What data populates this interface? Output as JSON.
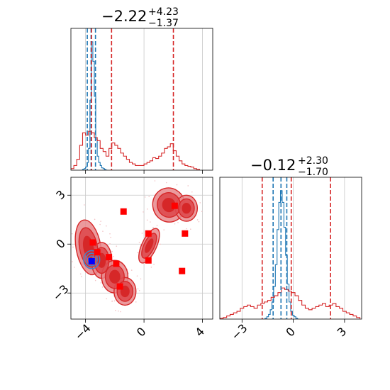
{
  "chart_data": [
    {
      "type": "histogram",
      "panel": "top-left",
      "title": {
        "main": "−2.22",
        "sup": "+4.23",
        "sub": "−1.37"
      },
      "xlim": [
        -5.0,
        4.7
      ],
      "grid": true,
      "series": [
        {
          "name": "",
          "color": "#1f77b4",
          "role": "narrow-posterior",
          "bins": [
            [
              -4.25,
              0
            ],
            [
              -4.15,
              1
            ],
            [
              -4.05,
              2
            ],
            [
              -3.95,
              4
            ],
            [
              -3.85,
              10
            ],
            [
              -3.75,
              28
            ],
            [
              -3.65,
              90
            ],
            [
              -3.55,
              165
            ],
            [
              -3.45,
              140
            ],
            [
              -3.35,
              95
            ],
            [
              -3.25,
              40
            ],
            [
              -3.15,
              18
            ],
            [
              -3.05,
              10
            ],
            [
              -2.95,
              6
            ],
            [
              -2.85,
              3
            ],
            [
              -2.75,
              2
            ],
            [
              -2.65,
              1
            ],
            [
              -2.55,
              0
            ]
          ],
          "quantiles": [
            -3.88,
            -3.62,
            -3.32
          ]
        },
        {
          "name": "",
          "color": "#d62728",
          "role": "broad-posterior",
          "bins": [
            [
              -4.9,
              2
            ],
            [
              -4.7,
              6
            ],
            [
              -4.5,
              14
            ],
            [
              -4.3,
              32
            ],
            [
              -4.1,
              48
            ],
            [
              -3.9,
              45
            ],
            [
              -3.7,
              50
            ],
            [
              -3.5,
              48
            ],
            [
              -3.3,
              42
            ],
            [
              -3.1,
              38
            ],
            [
              -2.9,
              28
            ],
            [
              -2.7,
              24
            ],
            [
              -2.5,
              18
            ],
            [
              -2.3,
              28
            ],
            [
              -2.1,
              35
            ],
            [
              -1.9,
              32
            ],
            [
              -1.7,
              28
            ],
            [
              -1.5,
              22
            ],
            [
              -1.3,
              18
            ],
            [
              -1.1,
              14
            ],
            [
              -0.9,
              10
            ],
            [
              -0.7,
              8
            ],
            [
              -0.5,
              6
            ],
            [
              -0.3,
              6
            ],
            [
              -0.1,
              6
            ],
            [
              0.1,
              8
            ],
            [
              0.3,
              10
            ],
            [
              0.5,
              12
            ],
            [
              0.7,
              16
            ],
            [
              0.9,
              15
            ],
            [
              1.1,
              18
            ],
            [
              1.3,
              22
            ],
            [
              1.5,
              28
            ],
            [
              1.7,
              30
            ],
            [
              1.9,
              34
            ],
            [
              2.1,
              25
            ],
            [
              2.3,
              18
            ],
            [
              2.5,
              12
            ],
            [
              2.7,
              8
            ],
            [
              2.9,
              6
            ],
            [
              3.1,
              5
            ],
            [
              3.3,
              4
            ],
            [
              3.5,
              2
            ],
            [
              3.7,
              1
            ]
          ],
          "quantiles": [
            -3.59,
            -2.22,
            2.01
          ]
        }
      ],
      "ylim": [
        0,
        175
      ]
    },
    {
      "type": "scatter",
      "panel": "bottom-left",
      "xlim": [
        -5.0,
        4.7
      ],
      "ylim": [
        -4.6,
        4.1
      ],
      "xticks": [
        {
          "v": -4,
          "label": "−4"
        },
        {
          "v": 0,
          "label": "0"
        },
        {
          "v": 4,
          "label": "4"
        }
      ],
      "yticks": [
        {
          "v": 3,
          "label": "3"
        },
        {
          "v": 0,
          "label": "0"
        },
        {
          "v": -3,
          "label": "−3"
        }
      ],
      "grid": true,
      "red_blobs": [
        {
          "cx": -3.8,
          "cy": -0.2,
          "rx": 0.85,
          "ry": 1.7,
          "rot": -10
        },
        {
          "cx": -2.9,
          "cy": -1.0,
          "rx": 0.7,
          "ry": 1.1,
          "rot": 0
        },
        {
          "cx": -2.0,
          "cy": -2.0,
          "rx": 0.9,
          "ry": 1.0,
          "rot": 0
        },
        {
          "cx": -1.3,
          "cy": -2.9,
          "rx": 0.75,
          "ry": 0.85,
          "rot": 0
        },
        {
          "cx": 0.35,
          "cy": -0.1,
          "rx": 0.5,
          "ry": 1.15,
          "rot": 25
        },
        {
          "cx": 1.7,
          "cy": 2.4,
          "rx": 1.1,
          "ry": 1.05,
          "rot": -15
        },
        {
          "cx": 2.9,
          "cy": 2.2,
          "rx": 0.75,
          "ry": 0.8,
          "rot": 0
        }
      ],
      "red_markers": [
        [
          -1.4,
          2.0
        ],
        [
          -3.5,
          0.1
        ],
        [
          -3.2,
          -0.5
        ],
        [
          -2.4,
          -0.8
        ],
        [
          -1.9,
          -1.2
        ],
        [
          -1.65,
          -2.6
        ],
        [
          0.3,
          0.65
        ],
        [
          0.3,
          -1.0
        ],
        [
          2.8,
          0.65
        ],
        [
          2.1,
          2.35
        ],
        [
          2.6,
          -1.65
        ]
      ],
      "blue_contour": {
        "cx": -3.58,
        "cy": -0.95,
        "rx": 0.55,
        "ry": 0.55
      },
      "blue_marker": [
        -3.58,
        -1.05
      ],
      "marker_colors": {
        "red": "#ff0000",
        "blue": "#0000ff",
        "red_fill": "#e8888c",
        "red_core": "#d62728",
        "blue_line": "#4c7fc0"
      }
    },
    {
      "type": "histogram",
      "panel": "bottom-right",
      "title": {
        "main": "−0.12",
        "sup": "+2.30",
        "sub": "−1.70"
      },
      "xlim": [
        -4.3,
        4.0
      ],
      "xticks": [
        {
          "v": -3,
          "label": "−3"
        },
        {
          "v": 0,
          "label": "0"
        },
        {
          "v": 3,
          "label": "3"
        }
      ],
      "grid": true,
      "series": [
        {
          "name": "",
          "color": "#1f77b4",
          "role": "narrow-posterior",
          "bins": [
            [
              -1.7,
              0
            ],
            [
              -1.6,
              1
            ],
            [
              -1.5,
              3
            ],
            [
              -1.4,
              6
            ],
            [
              -1.3,
              12
            ],
            [
              -1.2,
              22
            ],
            [
              -1.1,
              42
            ],
            [
              -1.0,
              70
            ],
            [
              -0.9,
              115
            ],
            [
              -0.8,
              150
            ],
            [
              -0.7,
              165
            ],
            [
              -0.6,
              150
            ],
            [
              -0.5,
              118
            ],
            [
              -0.4,
              82
            ],
            [
              -0.3,
              45
            ],
            [
              -0.2,
              22
            ],
            [
              -0.1,
              10
            ],
            [
              0.0,
              5
            ],
            [
              0.1,
              3
            ],
            [
              0.2,
              1
            ],
            [
              0.3,
              0
            ]
          ],
          "quantiles": [
            -1.18,
            -0.72,
            -0.38
          ]
        },
        {
          "name": "",
          "color": "#d62728",
          "role": "broad-posterior",
          "bins": [
            [
              -4.2,
              1
            ],
            [
              -4.0,
              2
            ],
            [
              -3.8,
              4
            ],
            [
              -3.6,
              6
            ],
            [
              -3.4,
              8
            ],
            [
              -3.2,
              10
            ],
            [
              -3.0,
              14
            ],
            [
              -2.8,
              16
            ],
            [
              -2.6,
              18
            ],
            [
              -2.4,
              16
            ],
            [
              -2.2,
              14
            ],
            [
              -2.0,
              18
            ],
            [
              -1.8,
              20
            ],
            [
              -1.6,
              22
            ],
            [
              -1.4,
              24
            ],
            [
              -1.2,
              28
            ],
            [
              -1.0,
              30
            ],
            [
              -0.8,
              34
            ],
            [
              -0.6,
              40
            ],
            [
              -0.4,
              38
            ],
            [
              -0.2,
              36
            ],
            [
              0.0,
              34
            ],
            [
              0.2,
              30
            ],
            [
              0.4,
              24
            ],
            [
              0.6,
              18
            ],
            [
              0.8,
              14
            ],
            [
              1.0,
              12
            ],
            [
              1.2,
              14
            ],
            [
              1.4,
              16
            ],
            [
              1.6,
              18
            ],
            [
              1.8,
              20
            ],
            [
              2.0,
              16
            ],
            [
              2.2,
              18
            ],
            [
              2.4,
              20
            ],
            [
              2.6,
              16
            ],
            [
              2.8,
              14
            ],
            [
              3.0,
              10
            ],
            [
              3.2,
              8
            ],
            [
              3.4,
              6
            ],
            [
              3.6,
              4
            ],
            [
              3.8,
              2
            ]
          ],
          "quantiles": [
            -1.82,
            -0.12,
            2.18
          ]
        }
      ],
      "ylim": [
        0,
        175
      ]
    }
  ],
  "top_xticks": [
    -4,
    0,
    4
  ]
}
